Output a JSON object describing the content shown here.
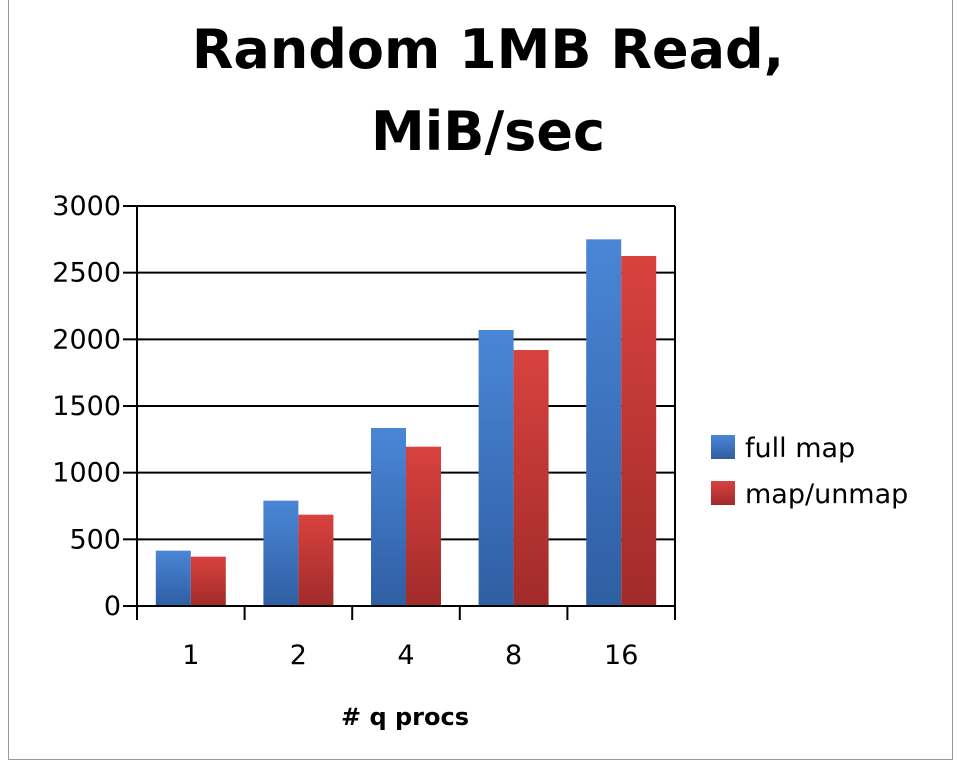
{
  "chart_data": {
    "type": "bar",
    "title_lines": [
      "Random 1MB Read,",
      "MiB/sec"
    ],
    "xlabel": "# q procs",
    "ylabel": "",
    "categories": [
      "1",
      "2",
      "4",
      "8",
      "16"
    ],
    "series": [
      {
        "name": "full map",
        "values": [
          415,
          790,
          1335,
          2070,
          2750
        ],
        "color": "#3f78c7"
      },
      {
        "name": "map/unmap",
        "values": [
          370,
          685,
          1195,
          1920,
          2625
        ],
        "color": "#c93a38"
      }
    ],
    "ylim": [
      0,
      3000
    ],
    "yticks": [
      "0",
      "500",
      "1000",
      "1500",
      "2000",
      "2500",
      "3000"
    ],
    "grid": true,
    "legend_position": "right"
  }
}
